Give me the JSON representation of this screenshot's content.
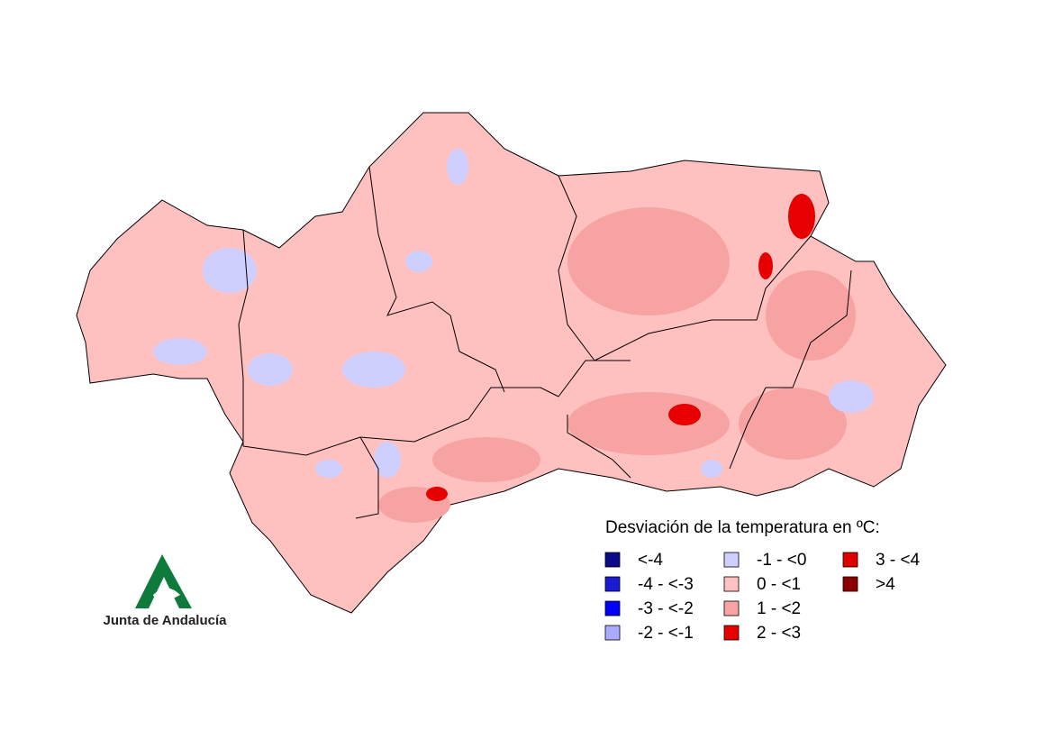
{
  "legend": {
    "title": "Desviación de la temperatura en ºC:",
    "items": [
      {
        "label": "<-4",
        "color": "#0b0b8a"
      },
      {
        "label": "-4 - <-3",
        "color": "#1a1ad0"
      },
      {
        "label": "-3 - <-2",
        "color": "#0000ff"
      },
      {
        "label": "-2 - <-1",
        "color": "#aaaaff"
      },
      {
        "label": "-1 - <0",
        "color": "#cfcfff"
      },
      {
        "label": "0 - <1",
        "color": "#ffc0c0"
      },
      {
        "label": "1 - <2",
        "color": "#f7a3a3"
      },
      {
        "label": "2 - <3",
        "color": "#e60000"
      },
      {
        "label": "3 - <4",
        "color": "#e00000"
      },
      {
        "label": ">4",
        "color": "#8b0000"
      }
    ]
  },
  "logo": {
    "text": "Junta de Andalucía"
  }
}
